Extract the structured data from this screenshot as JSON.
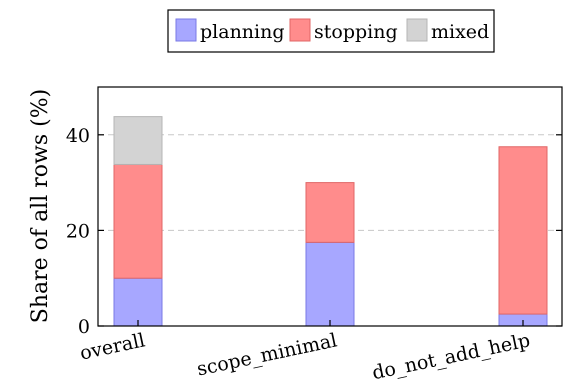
{
  "chart_data": {
    "type": "bar",
    "stacked": true,
    "categories": [
      "overall",
      "scope_minimal",
      "do_not_add_help"
    ],
    "series": [
      {
        "name": "planning",
        "color": "#a7a7ff",
        "edge": "#7a7ae6",
        "values": [
          10,
          17.5,
          2.5
        ]
      },
      {
        "name": "stopping",
        "color": "#ff8c8c",
        "edge": "#e06666",
        "values": [
          23.8,
          12.5,
          35
        ]
      },
      {
        "name": "mixed",
        "color": "#d3d3d3",
        "edge": "#b5b5b5",
        "values": [
          10,
          0,
          0
        ]
      }
    ],
    "ylabel": "Share of all rows (%)",
    "ylim": [
      0,
      50
    ],
    "yticks": [
      0,
      20,
      40
    ],
    "grid": true,
    "legend_position": "top-center"
  }
}
